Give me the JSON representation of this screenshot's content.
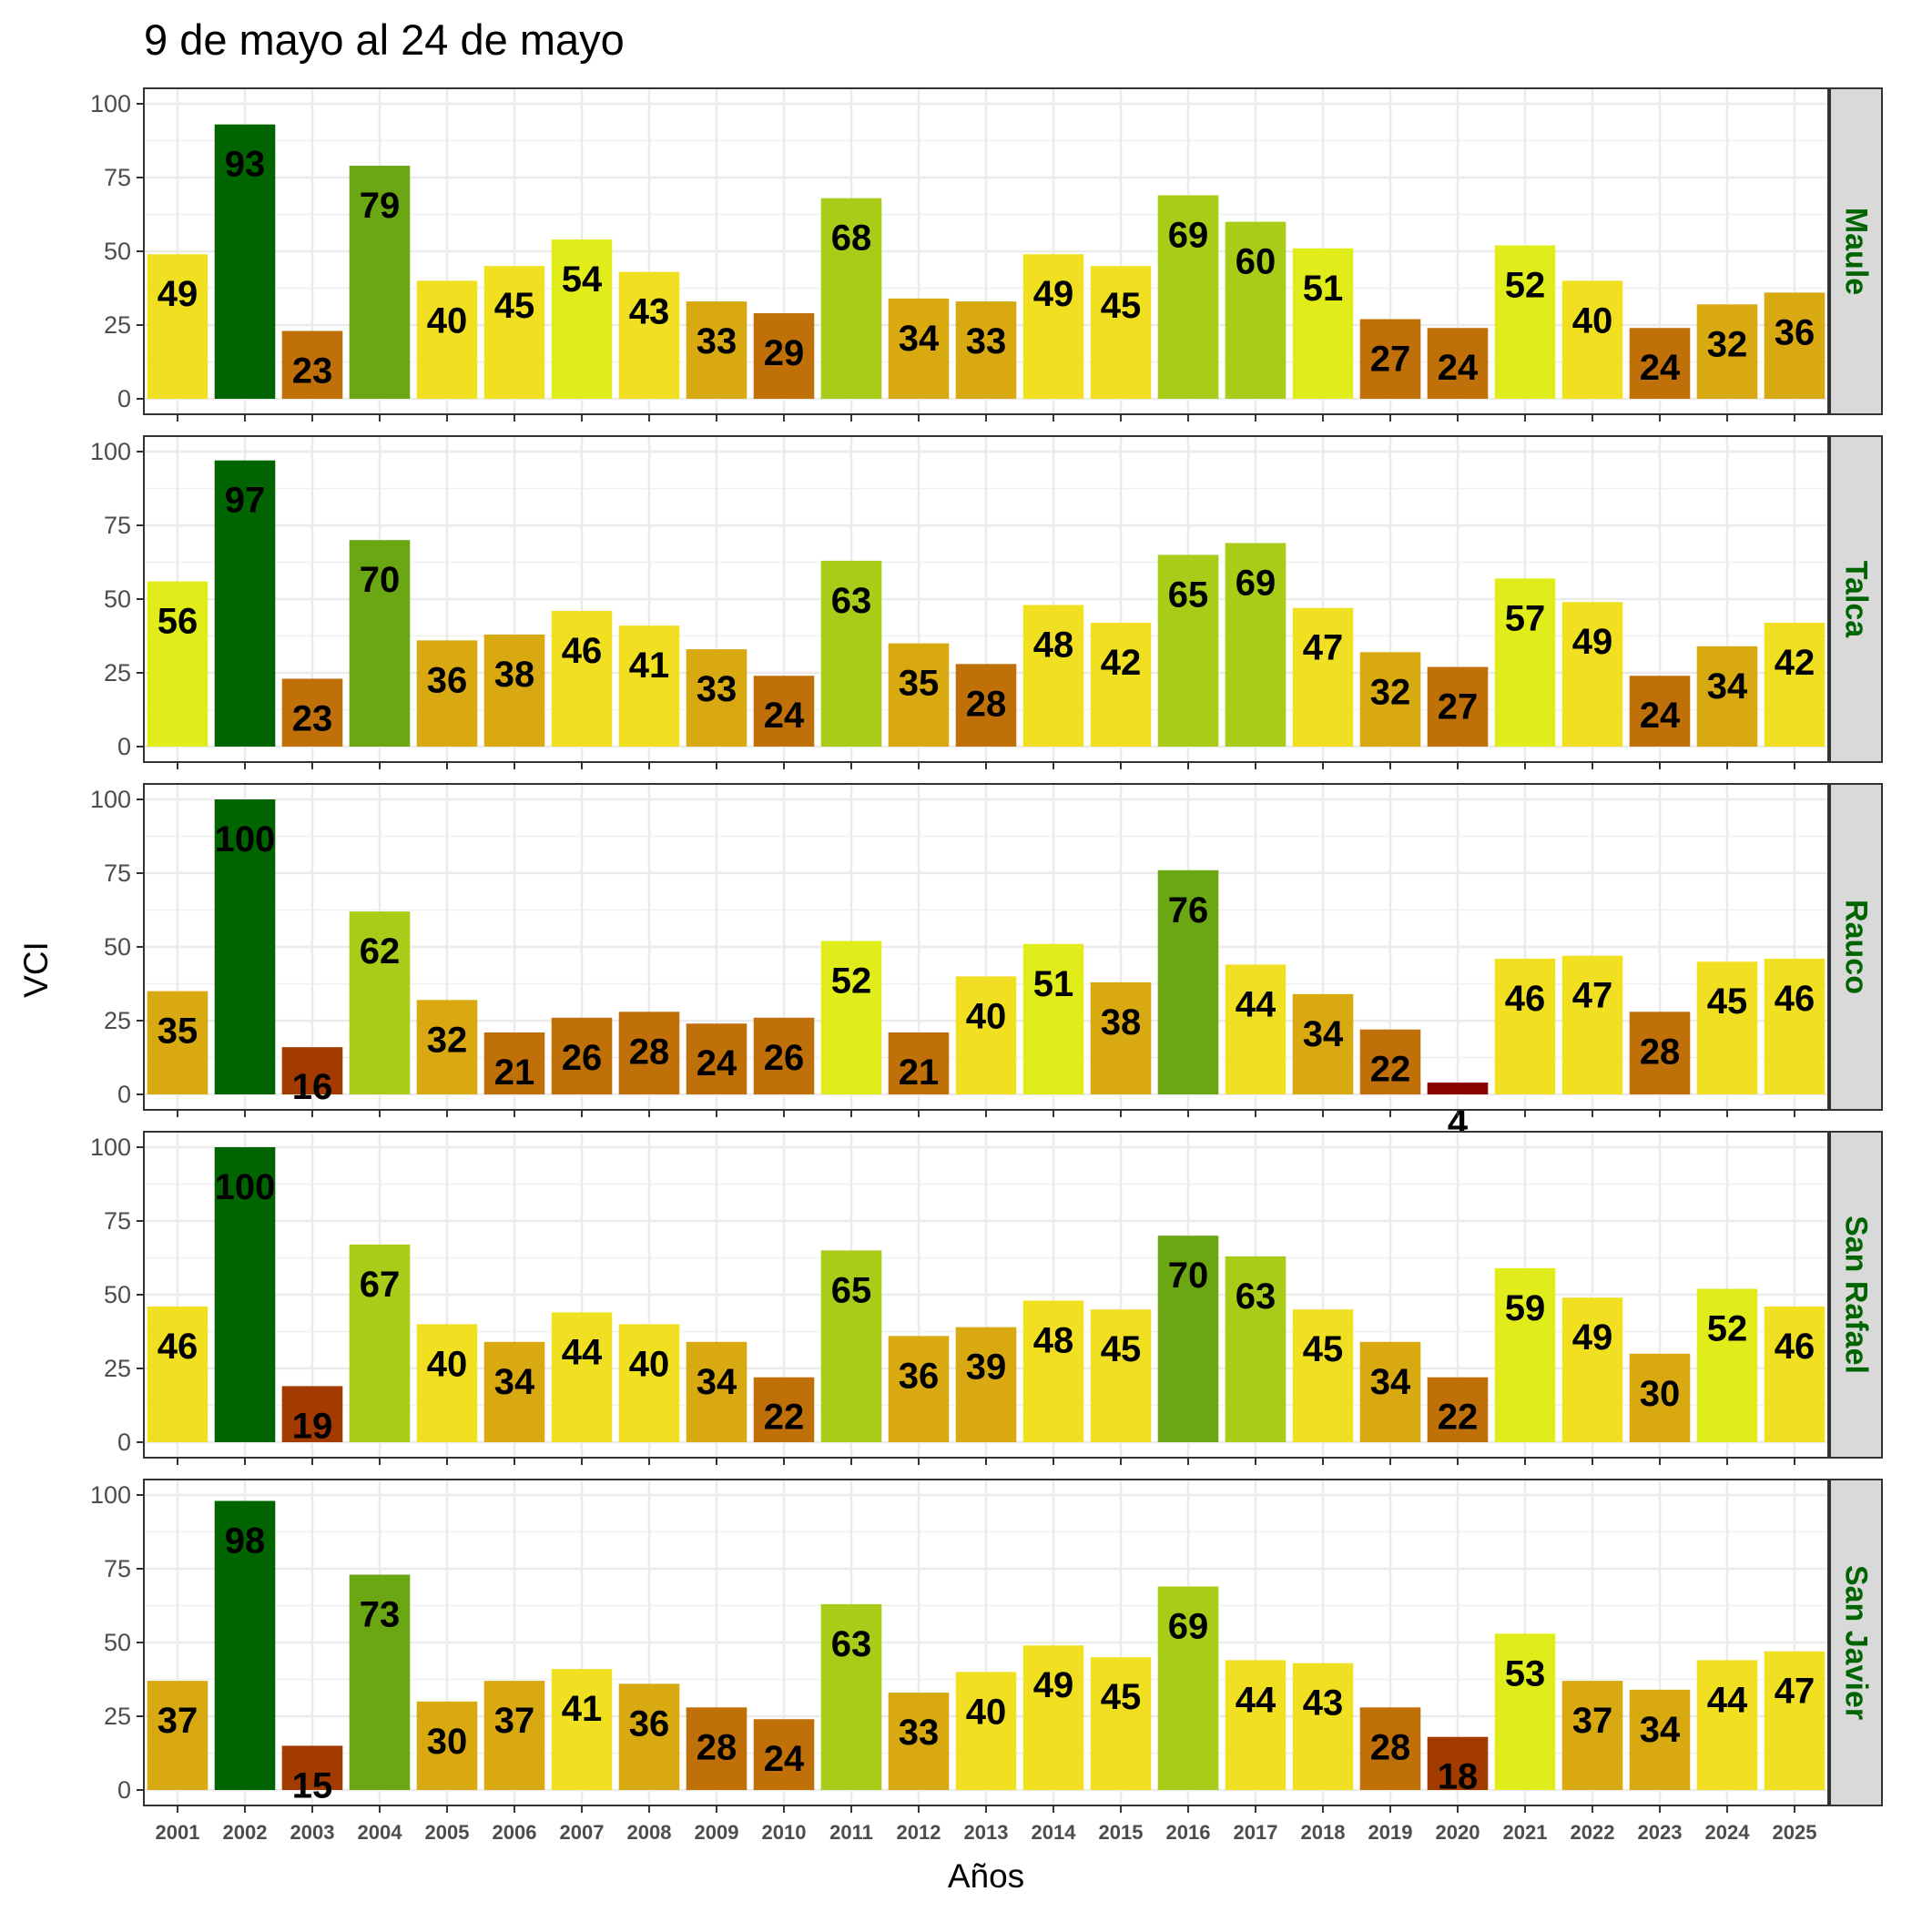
{
  "chart_data": {
    "type": "bar",
    "title": "9 de mayo al 24 de mayo",
    "xlabel": "Años",
    "ylabel": "VCI",
    "ylim": [
      0,
      100
    ],
    "yticks": [
      "0",
      "25",
      "50",
      "75",
      "100"
    ],
    "grid": true,
    "categories": [
      "2001",
      "2002",
      "2003",
      "2004",
      "2005",
      "2006",
      "2007",
      "2008",
      "2009",
      "2010",
      "2011",
      "2012",
      "2013",
      "2014",
      "2015",
      "2016",
      "2017",
      "2018",
      "2019",
      "2020",
      "2021",
      "2022",
      "2023",
      "2024",
      "2025"
    ],
    "series": [
      {
        "name": "Maule",
        "values": [
          49,
          93,
          23,
          79,
          40,
          45,
          54,
          43,
          33,
          29,
          68,
          34,
          33,
          49,
          45,
          69,
          60,
          51,
          27,
          24,
          52,
          40,
          24,
          32,
          36
        ]
      },
      {
        "name": "Talca",
        "values": [
          56,
          97,
          23,
          70,
          36,
          38,
          46,
          41,
          33,
          24,
          63,
          35,
          28,
          48,
          42,
          65,
          69,
          47,
          32,
          27,
          57,
          49,
          24,
          34,
          42
        ]
      },
      {
        "name": "Rauco",
        "values": [
          35,
          100,
          16,
          62,
          32,
          21,
          26,
          28,
          24,
          26,
          52,
          21,
          40,
          51,
          38,
          76,
          44,
          34,
          22,
          4,
          46,
          47,
          28,
          45,
          46
        ]
      },
      {
        "name": "San Rafael",
        "values": [
          46,
          100,
          19,
          67,
          40,
          34,
          44,
          40,
          34,
          22,
          65,
          36,
          39,
          48,
          45,
          70,
          63,
          45,
          34,
          22,
          59,
          49,
          30,
          52,
          46
        ]
      },
      {
        "name": "San Javier",
        "values": [
          37,
          98,
          15,
          73,
          30,
          37,
          41,
          36,
          28,
          24,
          63,
          33,
          40,
          49,
          45,
          69,
          44,
          43,
          28,
          18,
          53,
          37,
          34,
          44,
          47
        ]
      }
    ],
    "color_scale": [
      {
        "min": 0,
        "max": 10,
        "color": "#8b0000"
      },
      {
        "min": 10,
        "max": 20,
        "color": "#a33a00"
      },
      {
        "min": 20,
        "max": 30,
        "color": "#c07008"
      },
      {
        "min": 30,
        "max": 40,
        "color": "#d9a912"
      },
      {
        "min": 40,
        "max": 50,
        "color": "#f0e021"
      },
      {
        "min": 50,
        "max": 60,
        "color": "#e0ed1b"
      },
      {
        "min": 60,
        "max": 70,
        "color": "#a8cc18"
      },
      {
        "min": 70,
        "max": 80,
        "color": "#6aa712"
      },
      {
        "min": 80,
        "max": 101,
        "color": "#006400"
      }
    ],
    "strip_background": "#d9d9d9",
    "strip_text_color": "#006400"
  }
}
